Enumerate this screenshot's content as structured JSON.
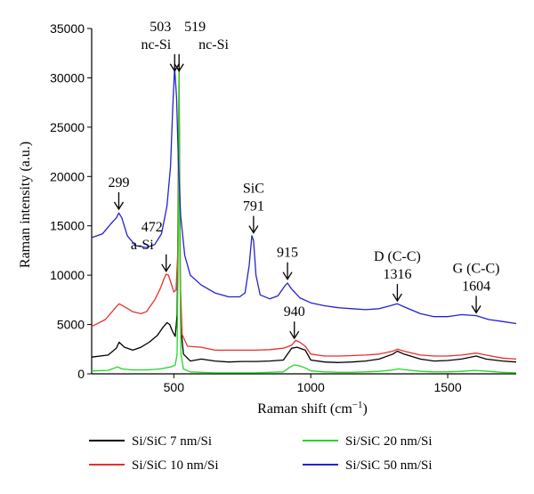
{
  "chart_data": {
    "type": "line",
    "title": "",
    "xlabel": "Raman shift (cm",
    "xlabel_sup": "−1",
    "xlabel_suffix": ")",
    "ylabel": "Raman intensity (a.u.)",
    "xlim": [
      200,
      1750
    ],
    "ylim": [
      0,
      35000
    ],
    "x_ticks": [
      500,
      1000,
      1500
    ],
    "y_ticks": [
      0,
      5000,
      10000,
      15000,
      20000,
      25000,
      30000,
      35000
    ],
    "grid": false,
    "legend_position": "bottom",
    "series": [
      {
        "name": "Si/SiC 7 nm/Si",
        "color": "#000000",
        "points": [
          [
            200,
            1700
          ],
          [
            260,
            1900
          ],
          [
            290,
            2600
          ],
          [
            300,
            3200
          ],
          [
            320,
            2700
          ],
          [
            350,
            2400
          ],
          [
            380,
            2700
          ],
          [
            410,
            3200
          ],
          [
            440,
            3900
          ],
          [
            460,
            4700
          ],
          [
            475,
            5200
          ],
          [
            485,
            5000
          ],
          [
            495,
            4300
          ],
          [
            505,
            3800
          ],
          [
            512,
            6000
          ],
          [
            517,
            18000
          ],
          [
            519,
            28000
          ],
          [
            521,
            18000
          ],
          [
            525,
            5000
          ],
          [
            535,
            2000
          ],
          [
            560,
            1300
          ],
          [
            600,
            1500
          ],
          [
            650,
            1300
          ],
          [
            700,
            1200
          ],
          [
            750,
            1250
          ],
          [
            800,
            1250
          ],
          [
            850,
            1300
          ],
          [
            900,
            1400
          ],
          [
            930,
            2600
          ],
          [
            950,
            2700
          ],
          [
            980,
            2400
          ],
          [
            1000,
            1400
          ],
          [
            1050,
            1200
          ],
          [
            1100,
            1150
          ],
          [
            1150,
            1200
          ],
          [
            1200,
            1300
          ],
          [
            1250,
            1500
          ],
          [
            1300,
            2000
          ],
          [
            1316,
            2300
          ],
          [
            1340,
            2000
          ],
          [
            1400,
            1500
          ],
          [
            1450,
            1300
          ],
          [
            1500,
            1350
          ],
          [
            1550,
            1500
          ],
          [
            1604,
            1800
          ],
          [
            1640,
            1500
          ],
          [
            1700,
            1300
          ],
          [
            1750,
            1200
          ]
        ]
      },
      {
        "name": "Si/SiC 10 nm/Si",
        "color": "#e8302a",
        "points": [
          [
            200,
            4800
          ],
          [
            250,
            5500
          ],
          [
            290,
            6800
          ],
          [
            300,
            7100
          ],
          [
            320,
            6800
          ],
          [
            350,
            6300
          ],
          [
            380,
            6100
          ],
          [
            400,
            6300
          ],
          [
            430,
            7500
          ],
          [
            450,
            8600
          ],
          [
            465,
            9700
          ],
          [
            472,
            10100
          ],
          [
            480,
            10000
          ],
          [
            490,
            9200
          ],
          [
            500,
            8300
          ],
          [
            508,
            8500
          ],
          [
            514,
            12000
          ],
          [
            519,
            31500
          ],
          [
            524,
            9000
          ],
          [
            530,
            4000
          ],
          [
            550,
            2800
          ],
          [
            600,
            2700
          ],
          [
            650,
            2400
          ],
          [
            700,
            2400
          ],
          [
            750,
            2400
          ],
          [
            800,
            2400
          ],
          [
            850,
            2450
          ],
          [
            900,
            2600
          ],
          [
            930,
            2900
          ],
          [
            945,
            3400
          ],
          [
            960,
            3200
          ],
          [
            980,
            2800
          ],
          [
            1000,
            2000
          ],
          [
            1050,
            1800
          ],
          [
            1100,
            1800
          ],
          [
            1150,
            1850
          ],
          [
            1200,
            1900
          ],
          [
            1250,
            2000
          ],
          [
            1300,
            2300
          ],
          [
            1316,
            2500
          ],
          [
            1340,
            2300
          ],
          [
            1400,
            1900
          ],
          [
            1450,
            1800
          ],
          [
            1500,
            1800
          ],
          [
            1550,
            1900
          ],
          [
            1604,
            2100
          ],
          [
            1640,
            1900
          ],
          [
            1700,
            1600
          ],
          [
            1750,
            1500
          ]
        ]
      },
      {
        "name": "Si/SiC 20 nm/Si",
        "color": "#22d822",
        "points": [
          [
            200,
            300
          ],
          [
            260,
            350
          ],
          [
            295,
            700
          ],
          [
            310,
            500
          ],
          [
            350,
            400
          ],
          [
            400,
            400
          ],
          [
            450,
            500
          ],
          [
            490,
            700
          ],
          [
            505,
            900
          ],
          [
            512,
            2000
          ],
          [
            516,
            12000
          ],
          [
            519,
            31000
          ],
          [
            522,
            12000
          ],
          [
            526,
            2000
          ],
          [
            535,
            500
          ],
          [
            560,
            200
          ],
          [
            600,
            150
          ],
          [
            650,
            100
          ],
          [
            700,
            100
          ],
          [
            750,
            100
          ],
          [
            800,
            100
          ],
          [
            850,
            150
          ],
          [
            900,
            200
          ],
          [
            925,
            700
          ],
          [
            940,
            900
          ],
          [
            960,
            800
          ],
          [
            980,
            600
          ],
          [
            1000,
            300
          ],
          [
            1050,
            200
          ],
          [
            1100,
            150
          ],
          [
            1150,
            150
          ],
          [
            1200,
            200
          ],
          [
            1250,
            250
          ],
          [
            1300,
            400
          ],
          [
            1320,
            500
          ],
          [
            1350,
            400
          ],
          [
            1400,
            250
          ],
          [
            1450,
            200
          ],
          [
            1500,
            200
          ],
          [
            1550,
            250
          ],
          [
            1600,
            350
          ],
          [
            1650,
            250
          ],
          [
            1700,
            150
          ],
          [
            1750,
            100
          ]
        ]
      },
      {
        "name": "Si/SiC 50 nm/Si",
        "color": "#2222d0",
        "points": [
          [
            200,
            13800
          ],
          [
            240,
            14200
          ],
          [
            270,
            15200
          ],
          [
            290,
            15800
          ],
          [
            299,
            16300
          ],
          [
            310,
            15800
          ],
          [
            330,
            14000
          ],
          [
            360,
            13000
          ],
          [
            400,
            12800
          ],
          [
            430,
            13100
          ],
          [
            455,
            14200
          ],
          [
            475,
            17000
          ],
          [
            488,
            21000
          ],
          [
            496,
            27000
          ],
          [
            503,
            31000
          ],
          [
            510,
            28000
          ],
          [
            517,
            21000
          ],
          [
            525,
            16000
          ],
          [
            540,
            12000
          ],
          [
            560,
            10000
          ],
          [
            600,
            9000
          ],
          [
            650,
            8200
          ],
          [
            700,
            7800
          ],
          [
            740,
            7800
          ],
          [
            760,
            8200
          ],
          [
            775,
            11000
          ],
          [
            785,
            14000
          ],
          [
            791,
            13500
          ],
          [
            800,
            10000
          ],
          [
            815,
            8000
          ],
          [
            850,
            7600
          ],
          [
            880,
            7900
          ],
          [
            905,
            8900
          ],
          [
            915,
            9200
          ],
          [
            930,
            8600
          ],
          [
            960,
            7700
          ],
          [
            1000,
            7200
          ],
          [
            1050,
            6900
          ],
          [
            1100,
            6700
          ],
          [
            1150,
            6600
          ],
          [
            1200,
            6500
          ],
          [
            1250,
            6600
          ],
          [
            1290,
            6900
          ],
          [
            1316,
            7100
          ],
          [
            1340,
            6800
          ],
          [
            1400,
            6100
          ],
          [
            1450,
            5800
          ],
          [
            1500,
            5800
          ],
          [
            1550,
            6000
          ],
          [
            1604,
            5900
          ],
          [
            1650,
            5500
          ],
          [
            1700,
            5300
          ],
          [
            1750,
            5100
          ]
        ]
      }
    ],
    "annotations": [
      {
        "lines": [
          "503",
          "nc-Si"
        ],
        "x": 503,
        "y": 30600,
        "align": "end"
      },
      {
        "lines": [
          "519",
          "nc-Si"
        ],
        "x": 519,
        "y": 30600,
        "align": "start"
      },
      {
        "lines": [
          "299"
        ],
        "x": 299,
        "y": 16600,
        "align": "middle"
      },
      {
        "lines": [
          "472",
          "a-Si"
        ],
        "x": 472,
        "y": 10300,
        "align": "end-label"
      },
      {
        "lines": [
          "SiC",
          "791"
        ],
        "x": 791,
        "y": 14200,
        "align": "middle"
      },
      {
        "lines": [
          "915"
        ],
        "x": 915,
        "y": 9500,
        "align": "middle"
      },
      {
        "lines": [
          "940"
        ],
        "x": 940,
        "y": 3500,
        "align": "middle"
      },
      {
        "lines": [
          "D (C-C)",
          "1316"
        ],
        "x": 1316,
        "y": 7300,
        "align": "middle"
      },
      {
        "lines": [
          "G (C-C)",
          "1604"
        ],
        "x": 1604,
        "y": 6100,
        "align": "middle"
      }
    ]
  }
}
